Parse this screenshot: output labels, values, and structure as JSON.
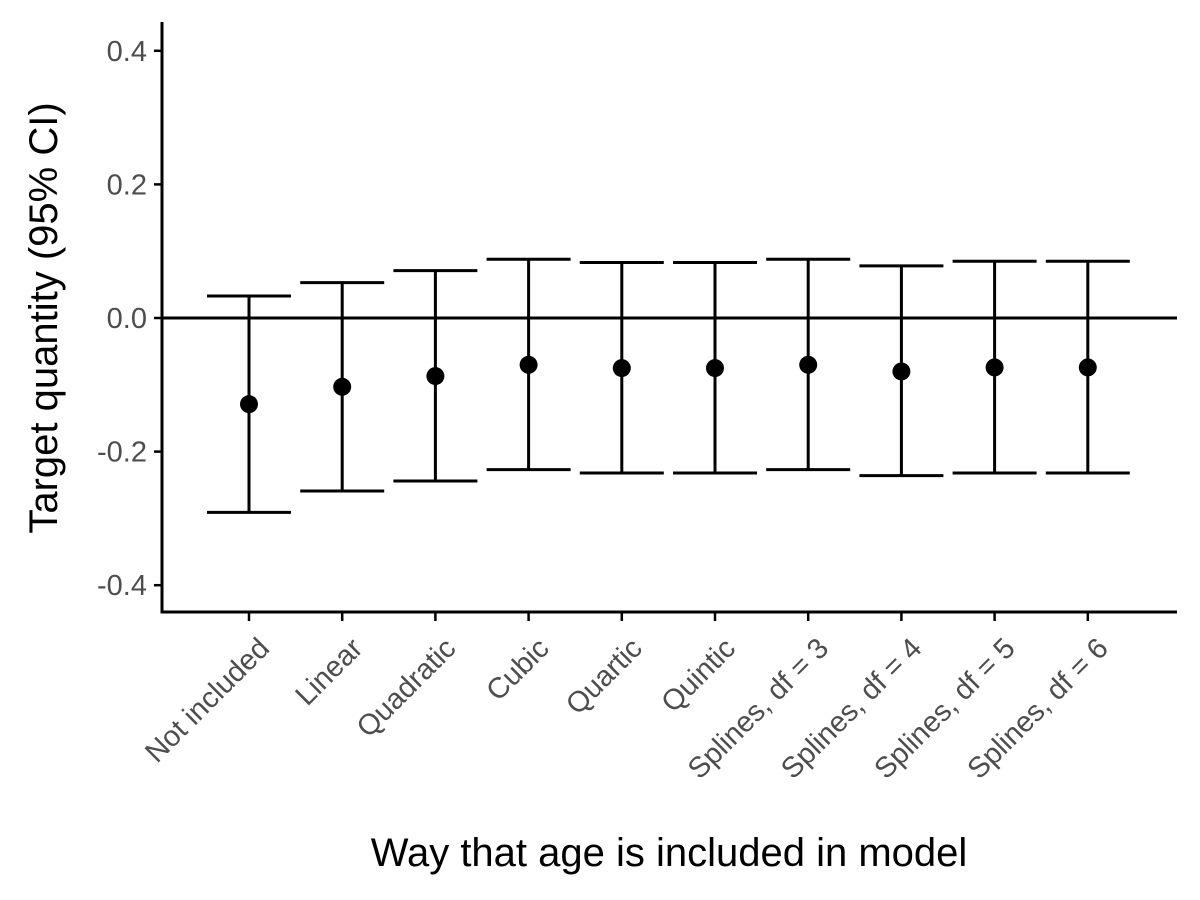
{
  "chart_data": {
    "type": "scatter",
    "subtype": "point-with-error-bars",
    "title": "",
    "xlabel": "Way that age is included in model",
    "ylabel": "Target quantity (95% CI)",
    "ylim": [
      -0.44,
      0.44
    ],
    "yticks": [
      0.4,
      0.2,
      0.0,
      -0.2,
      -0.4
    ],
    "ytick_labels": [
      "0.4",
      "0.2",
      "0.0",
      "-0.2",
      "-0.4"
    ],
    "reference_line_y": 0,
    "grid": false,
    "legend": "none",
    "categories": [
      "Not included",
      "Linear",
      "Quadratic",
      "Cubic",
      "Quartic",
      "Quintic",
      "Splines, df = 3",
      "Splines, df = 4",
      "Splines, df = 5",
      "Splines, df = 6"
    ],
    "estimate": [
      -0.129,
      -0.103,
      -0.087,
      -0.07,
      -0.075,
      -0.075,
      -0.07,
      -0.08,
      -0.074,
      -0.074
    ],
    "lower": [
      -0.291,
      -0.259,
      -0.244,
      -0.227,
      -0.232,
      -0.232,
      -0.227,
      -0.236,
      -0.232,
      -0.232
    ],
    "upper": [
      0.033,
      0.053,
      0.071,
      0.088,
      0.083,
      0.083,
      0.088,
      0.078,
      0.085,
      0.085
    ],
    "color": "#000000"
  }
}
